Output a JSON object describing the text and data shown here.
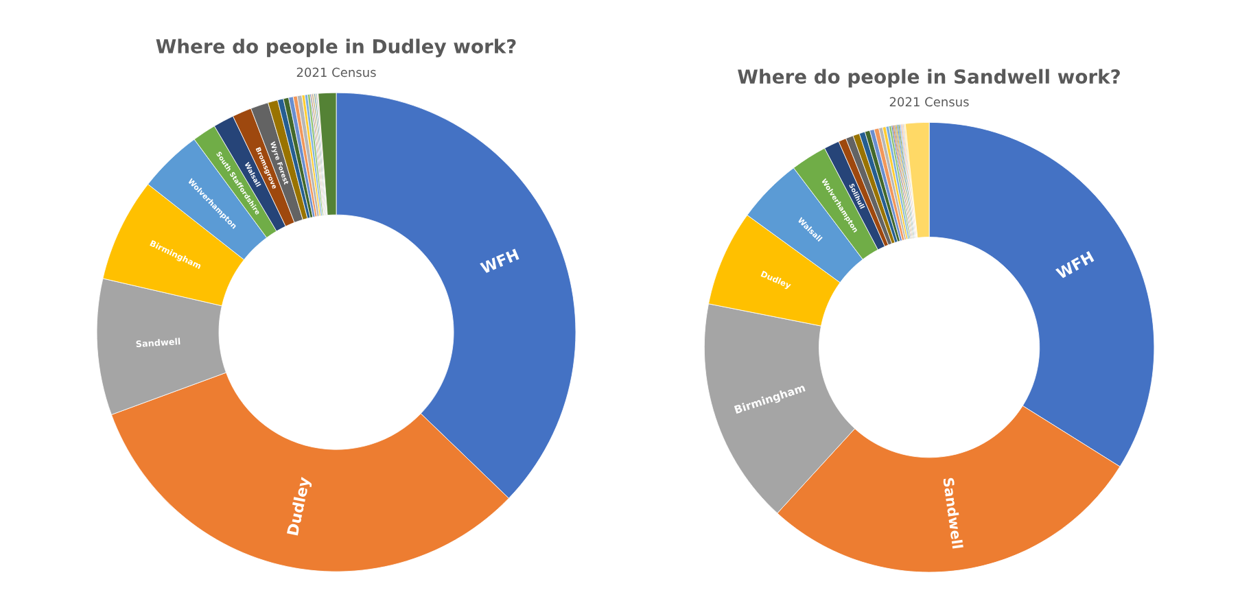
{
  "chart_data": [
    {
      "type": "donut",
      "title": "Where do people in Dudley work?",
      "subtitle": "2021 Census",
      "categories": [
        "WFH",
        "Dudley",
        "Sandwell",
        "Birmingham",
        "Wolverhampton",
        "South Staffordshire",
        "Walsall",
        "Bromsgrove",
        "Wyre Forest",
        null,
        null,
        null,
        null,
        null,
        null,
        null,
        null,
        null,
        null,
        null,
        null,
        null,
        null,
        null,
        null,
        null,
        null
      ],
      "values": [
        37.2,
        32.2,
        9.2,
        7.0,
        4.3,
        1.6,
        1.4,
        1.3,
        1.2,
        0.66,
        0.39,
        0.36,
        0.31,
        0.27,
        0.31,
        0.2,
        0.19,
        0.16,
        0.07,
        0.07,
        0.07,
        0.07,
        0.07,
        0.07,
        0.07,
        0.06,
        1.2
      ],
      "colors": [
        "#4472c4",
        "#ed7d31",
        "#a5a5a5",
        "#ffc000",
        "#5b9bd5",
        "#70ad47",
        "#264478",
        "#9e480e",
        "#636363",
        "#997300",
        "#255e91",
        "#43682b",
        "#698ed0",
        "#f1975a",
        "#b7b7b7",
        "#ffcd33",
        "#7cafdd",
        "#8cc168",
        "#335aa1",
        "#c55a11",
        "#7b7b7b",
        "#bf9000",
        "#2e75b6",
        "#548235",
        "#8faadc",
        "#f4b183",
        "#548235"
      ]
    },
    {
      "type": "donut",
      "title": "Where do people in Sandwell work?",
      "subtitle": "2021 Census",
      "categories": [
        "WFH",
        "Sandwell",
        "Birmingham",
        "Dudley",
        "Walsall",
        "Wolverhampton",
        "Solihull",
        null,
        null,
        null,
        null,
        null,
        null,
        null,
        null,
        null,
        null,
        null,
        null,
        null,
        null,
        null,
        null,
        null,
        null,
        null,
        null,
        null,
        null
      ],
      "values": [
        33.9,
        27.9,
        16.3,
        6.9,
        4.7,
        2.6,
        1.1,
        0.56,
        0.54,
        0.47,
        0.41,
        0.36,
        0.32,
        0.34,
        0.27,
        0.24,
        0.22,
        0.17,
        0.1,
        0.1,
        0.1,
        0.1,
        0.1,
        0.1,
        0.1,
        0.1,
        0.1,
        0.1,
        1.7
      ],
      "colors": [
        "#4472c4",
        "#ed7d31",
        "#a5a5a5",
        "#ffc000",
        "#5b9bd5",
        "#70ad47",
        "#264478",
        "#9e480e",
        "#636363",
        "#997300",
        "#255e91",
        "#43682b",
        "#698ed0",
        "#f1975a",
        "#b7b7b7",
        "#ffcd33",
        "#7cafdd",
        "#8cc168",
        "#335aa1",
        "#c55a11",
        "#7b7b7b",
        "#bf9000",
        "#2e75b6",
        "#548235",
        "#8faadc",
        "#f4b183",
        "#c9c9c9",
        "#ffe699",
        "#ffd966"
      ]
    }
  ]
}
